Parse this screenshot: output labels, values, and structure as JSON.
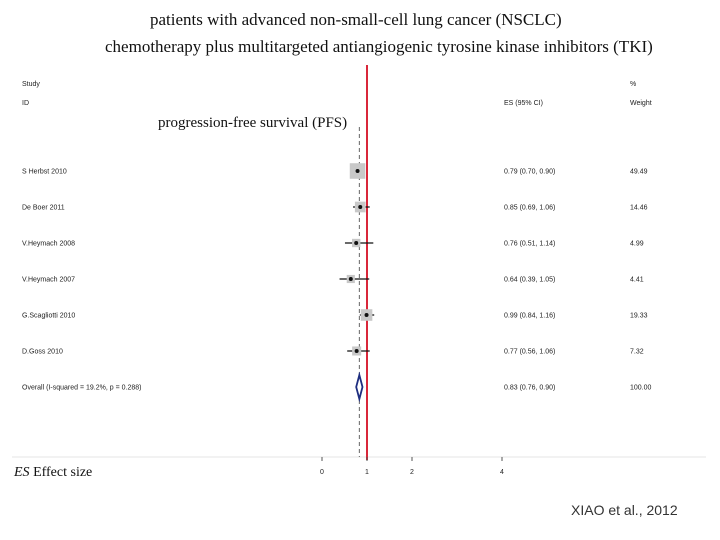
{
  "slide": {
    "title_line1": "patients with advanced non-small-cell lung cancer (NSCLC)",
    "title_line2": "chemotherapy plus multitargeted antiangiogenic tyrosine kinase inhibitors (TKI)",
    "overlay_title": "progression-free survival (PFS)",
    "es_abbrev": "ES",
    "es_definition": "Effect size",
    "citation": "XIAO et al., 2012"
  },
  "columns": {
    "study": "Study",
    "id": "ID",
    "es": "ES (95% CI)",
    "pct": "%",
    "weight": "Weight"
  },
  "colors": {
    "null_line": "#d9273a",
    "diamond": "#1e2e80",
    "box": "#c8c8c8",
    "ci": "#111111",
    "dashed": "#666666",
    "frame": "#e6e6e6"
  },
  "chart_data": {
    "type": "forest",
    "x_scale": "log",
    "x_ticks": [
      "0",
      "1",
      "2",
      "4"
    ],
    "null_value": 1,
    "overall_es": 0.83,
    "studies": [
      {
        "id": "S Herbst 2010",
        "es": 0.79,
        "lo": 0.7,
        "hi": 0.9,
        "es_ci": "0.79 (0.70, 0.90)",
        "weight": "49.49"
      },
      {
        "id": "De Boer 2011",
        "es": 0.85,
        "lo": 0.69,
        "hi": 1.06,
        "es_ci": "0.85 (0.69, 1.06)",
        "weight": "14.46"
      },
      {
        "id": "V.Heymach 2008",
        "es": 0.76,
        "lo": 0.51,
        "hi": 1.14,
        "es_ci": "0.76 (0.51, 1.14)",
        "weight": "4.99"
      },
      {
        "id": "V.Heymach 2007",
        "es": 0.64,
        "lo": 0.39,
        "hi": 1.05,
        "es_ci": "0.64 (0.39, 1.05)",
        "weight": "4.41"
      },
      {
        "id": "G.Scagliotti 2010",
        "es": 0.99,
        "lo": 0.84,
        "hi": 1.16,
        "es_ci": "0.99 (0.84, 1.16)",
        "weight": "19.33"
      },
      {
        "id": "D.Goss 2010",
        "es": 0.77,
        "lo": 0.56,
        "hi": 1.06,
        "es_ci": "0.77 (0.56, 1.06)",
        "weight": "7.32"
      }
    ],
    "overall": {
      "id": "Overall (I-squared = 19.2%, p = 0.288)",
      "es": 0.83,
      "lo": 0.76,
      "hi": 0.9,
      "es_ci": "0.83 (0.76, 0.90)",
      "weight": "100.00"
    }
  }
}
